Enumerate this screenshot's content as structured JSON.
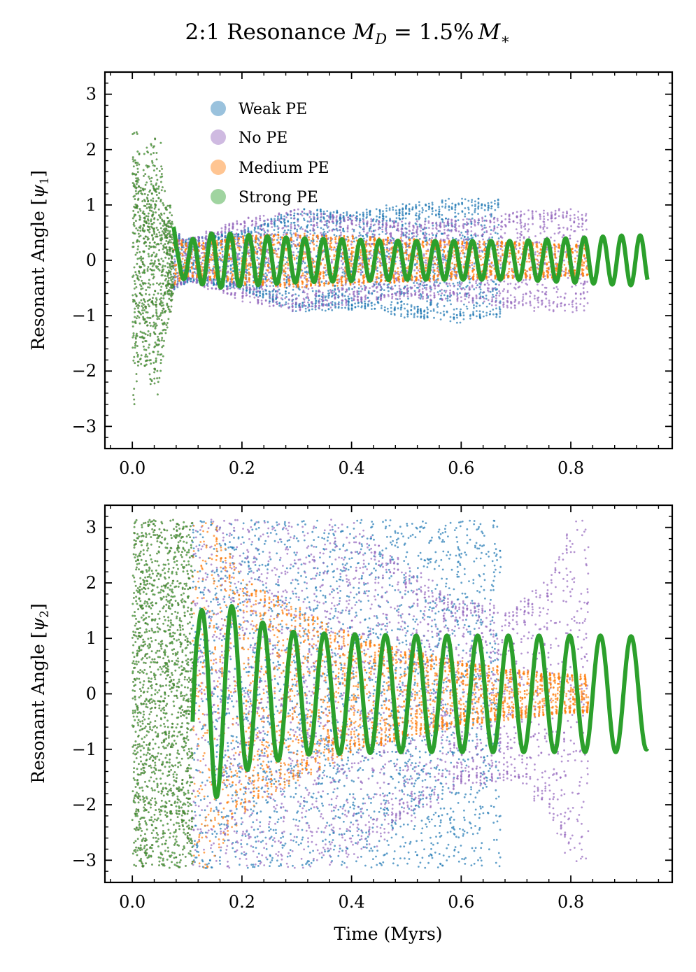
{
  "figure": {
    "title_prefix": "2:1 Resonance ",
    "title_math": "M",
    "title_math_sub": "D",
    "title_math_rest": " = 1.5%",
    "title_math_m": "M",
    "title_math_star": "∗"
  },
  "legend": {
    "entries": [
      {
        "label": "Weak PE",
        "color": "#1f77b4"
      },
      {
        "label": "No PE",
        "color": "#9467bd"
      },
      {
        "label": "Medium PE",
        "color": "#ff7f0e"
      },
      {
        "label": "Strong PE",
        "color": "#2ca02c"
      }
    ]
  },
  "chart_data": [
    {
      "type": "scatter",
      "title": "2:1 Resonance M_D = 1.5% M_*",
      "xlabel": "",
      "ylabel": "Resonant Angle [ψ1]",
      "ylabel_prefix": "Resonant Angle [",
      "ylabel_psi": "ψ",
      "ylabel_sub": "1",
      "ylabel_suffix": "]",
      "xlim": [
        -0.05,
        0.985
      ],
      "ylim": [
        -3.4,
        3.4
      ],
      "xticks": [
        0.0,
        0.2,
        0.4,
        0.6,
        0.8
      ],
      "xtick_labels": [
        "0.0",
        "0.2",
        "0.4",
        "0.6",
        "0.8"
      ],
      "yticks": [
        -3,
        -2,
        -1,
        0,
        1,
        2,
        3
      ],
      "ytick_labels": [
        "−3",
        "−2",
        "−1",
        "0",
        "1",
        "2",
        "3"
      ],
      "legend_position": "upper-left",
      "series": [
        {
          "name": "Weak PE",
          "color": "#1f77b4",
          "t_end": 0.672,
          "envelope_t": [
            0.0,
            0.1,
            0.2,
            0.3,
            0.4,
            0.5,
            0.6,
            0.672
          ],
          "envelope_amp": [
            1.0,
            0.4,
            0.55,
            0.95,
            0.9,
            1.05,
            1.15,
            1.1
          ]
        },
        {
          "name": "No PE",
          "color": "#9467bd",
          "t_end": 0.832,
          "envelope_t": [
            0.0,
            0.1,
            0.2,
            0.3,
            0.4,
            0.5,
            0.6,
            0.7,
            0.8,
            0.832
          ],
          "envelope_amp": [
            1.0,
            0.4,
            0.75,
            0.95,
            0.8,
            0.7,
            0.75,
            0.9,
            0.95,
            0.9
          ]
        },
        {
          "name": "Medium PE",
          "color": "#ff7f0e",
          "t_end": 0.832,
          "envelope_t": [
            0.0,
            0.1,
            0.2,
            0.3,
            0.4,
            0.5,
            0.6,
            0.7,
            0.8,
            0.832
          ],
          "envelope_amp": [
            1.0,
            0.3,
            0.45,
            0.5,
            0.45,
            0.4,
            0.35,
            0.35,
            0.3,
            0.3
          ]
        },
        {
          "name": "Strong PE",
          "color": "#2ca02c",
          "t_end": 0.94,
          "envelope_t": [
            0.0,
            0.02,
            0.045,
            0.08,
            0.15,
            0.3,
            0.5,
            0.7,
            0.9,
            0.94
          ],
          "envelope_amp": [
            2.9,
            2.0,
            2.6,
            0.3,
            0.5,
            0.4,
            0.35,
            0.35,
            0.45,
            0.45
          ],
          "oscillation_period": 0.034
        }
      ]
    },
    {
      "type": "scatter",
      "title": "",
      "xlabel": "Time (Myrs)",
      "ylabel": "Resonant Angle [ψ2]",
      "ylabel_prefix": "Resonant Angle [",
      "ylabel_psi": "ψ",
      "ylabel_sub": "2",
      "ylabel_suffix": "]",
      "xlim": [
        -0.05,
        0.985
      ],
      "ylim": [
        -3.4,
        3.4
      ],
      "xticks": [
        0.0,
        0.2,
        0.4,
        0.6,
        0.8
      ],
      "xtick_labels": [
        "0.0",
        "0.2",
        "0.4",
        "0.6",
        "0.8"
      ],
      "yticks": [
        -3,
        -2,
        -1,
        0,
        1,
        2,
        3
      ],
      "ytick_labels": [
        "−3",
        "−2",
        "−1",
        "0",
        "1",
        "2",
        "3"
      ],
      "series": [
        {
          "name": "Weak PE",
          "color": "#1f77b4",
          "t_end": 0.672,
          "envelope_t": [
            0.0,
            0.2,
            0.4,
            0.5,
            0.6,
            0.672
          ],
          "envelope_amp": [
            3.14,
            3.14,
            3.14,
            3.14,
            3.14,
            3.14
          ]
        },
        {
          "name": "No PE",
          "color": "#9467bd",
          "t_end": 0.832,
          "envelope_t": [
            0.0,
            0.2,
            0.4,
            0.5,
            0.6,
            0.7,
            0.76,
            0.8,
            0.832
          ],
          "envelope_amp": [
            3.14,
            3.14,
            3.14,
            2.4,
            1.7,
            1.6,
            2.2,
            3.14,
            3.14
          ]
        },
        {
          "name": "Medium PE",
          "color": "#ff7f0e",
          "t_end": 0.832,
          "envelope_t": [
            0.0,
            0.15,
            0.2,
            0.3,
            0.4,
            0.5,
            0.6,
            0.7,
            0.8,
            0.832
          ],
          "envelope_amp": [
            3.14,
            3.14,
            2.2,
            1.6,
            1.1,
            0.8,
            0.6,
            0.45,
            0.35,
            0.35
          ]
        },
        {
          "name": "Strong PE",
          "color": "#2ca02c",
          "t_end": 0.94,
          "envelope_t": [
            0.0,
            0.1,
            0.12,
            0.15,
            0.2,
            0.3,
            0.5,
            0.7,
            0.9,
            0.94
          ],
          "envelope_amp": [
            3.14,
            3.14,
            1.4,
            1.9,
            1.4,
            1.1,
            1.05,
            1.05,
            1.05,
            1.0
          ],
          "oscillation_period": 0.056
        }
      ]
    }
  ]
}
